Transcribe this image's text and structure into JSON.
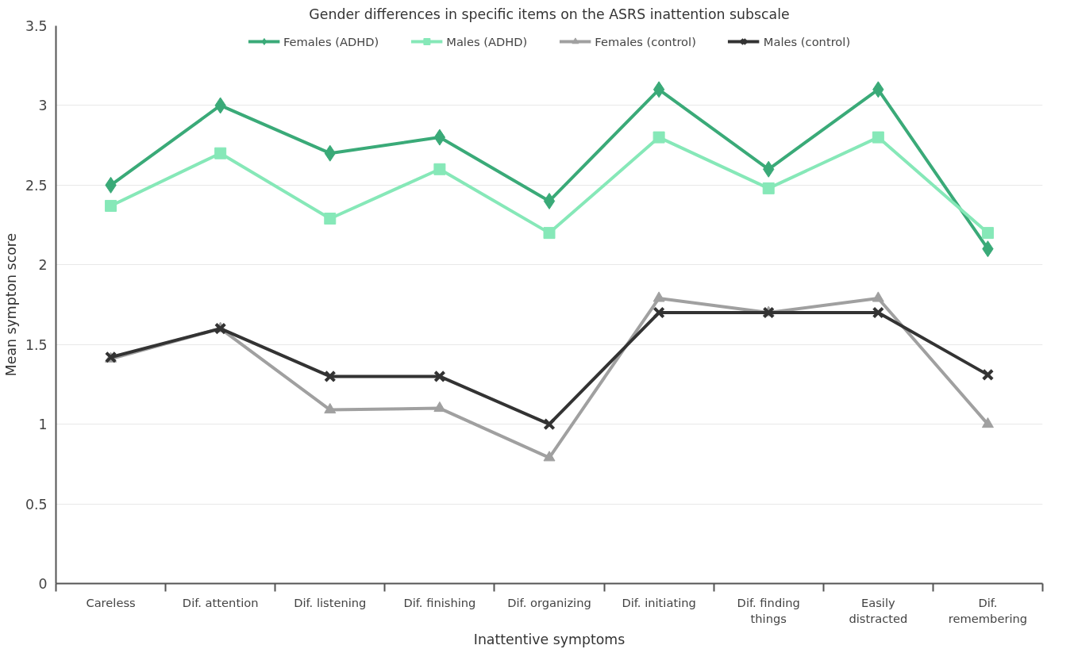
{
  "chart_data": {
    "type": "line",
    "title": "Gender differences in specific items on the ASRS inattention subscale",
    "xlabel": "Inattentive symptoms",
    "ylabel": "Mean sympton score",
    "categories": [
      "Careless",
      "Dif. attention",
      "Dif. listening",
      "Dif. finishing",
      "Dif. organizing",
      "Dif. initiating",
      "Dif. finding things",
      "Easily distracted",
      "Dif. remembering"
    ],
    "series": [
      {
        "name": "Females (ADHD)",
        "color": "#3aaa78",
        "marker": "diamond",
        "values": [
          2.5,
          3.0,
          2.7,
          2.8,
          2.4,
          3.1,
          2.6,
          3.1,
          2.1
        ]
      },
      {
        "name": "Males (ADHD)",
        "color": "#86e8b8",
        "marker": "square",
        "values": [
          2.37,
          2.7,
          2.29,
          2.6,
          2.2,
          2.8,
          2.48,
          2.8,
          2.2
        ]
      },
      {
        "name": "Females (control)",
        "color": "#a0a0a0",
        "marker": "triangle",
        "values": [
          1.41,
          1.6,
          1.09,
          1.1,
          0.79,
          1.79,
          1.7,
          1.79,
          1.0
        ]
      },
      {
        "name": "Males (control)",
        "color": "#333333",
        "marker": "cross",
        "values": [
          1.42,
          1.6,
          1.3,
          1.3,
          1.0,
          1.7,
          1.7,
          1.7,
          1.31
        ]
      }
    ],
    "ylim": [
      0,
      3.5
    ],
    "yticks": [
      0,
      0.5,
      1,
      1.5,
      2,
      2.5,
      3,
      3.5
    ],
    "grid": "y",
    "legend": "top",
    "line_style": "solid"
  }
}
